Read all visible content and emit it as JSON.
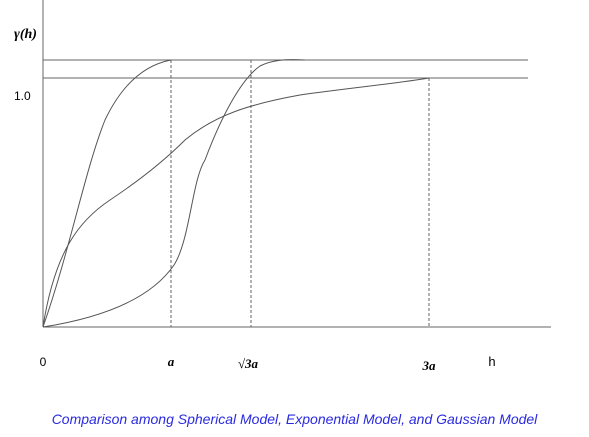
{
  "chart_data": {
    "type": "line",
    "caption": "Comparison among Spherical Model, Exponential Model, and Gaussian Model",
    "ylabel": "γ(h)",
    "xlabel": "h",
    "y_tick_label": "1.0",
    "x_origin_label": "0",
    "x_marks": [
      {
        "label": "a",
        "style": "serif-italic-bold"
      },
      {
        "label": "√3a",
        "style": "serif-italic-bold"
      },
      {
        "label": "3a",
        "style": "serif-italic-bold"
      }
    ],
    "sill_levels": [
      "upper",
      "lower"
    ],
    "series": [
      {
        "shape": "spherical",
        "reaches": "upper sill at a"
      },
      {
        "shape": "gaussian",
        "reaches": "upper sill at √3a"
      },
      {
        "shape": "exponential",
        "reaches": "lower sill at 3a"
      }
    ],
    "line_color": "#555555",
    "caption_color": "#2a2ae0",
    "grid": false
  }
}
